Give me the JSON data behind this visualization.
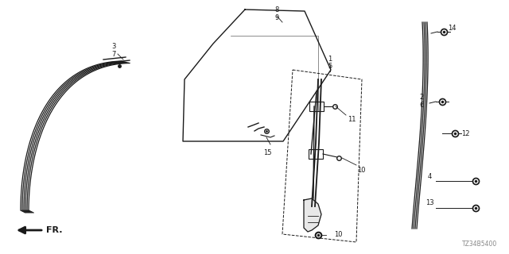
{
  "bg_color": "#ffffff",
  "line_color": "#1a1a1a",
  "fig_width": 6.4,
  "fig_height": 3.2,
  "dpi": 100,
  "diagram_code": "TZ34B5400",
  "label_fontsize": 7.0,
  "small_fontsize": 6.0
}
